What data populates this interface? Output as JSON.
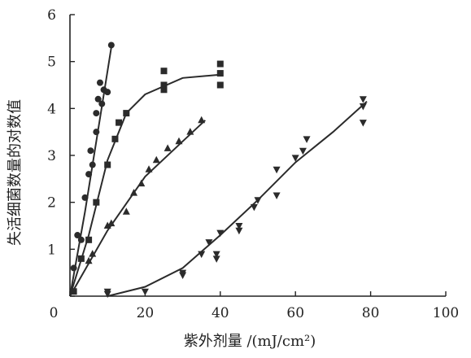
{
  "chart_data": {
    "type": "scatter",
    "title": "",
    "xlabel": "紫外剂量 /(mJ/cm²)",
    "ylabel": "失活细菌数量的对数值",
    "xlim": [
      0,
      100
    ],
    "ylim": [
      0,
      6
    ],
    "xticks": [
      "0",
      "20",
      "40",
      "60",
      "80",
      "100"
    ],
    "yticks": [
      "0",
      "1",
      "2",
      "3",
      "4",
      "5",
      "6"
    ],
    "grid": false,
    "legend": "none",
    "marker_color": "#2b2b2b",
    "series": [
      {
        "marker": "circle",
        "points": [
          [
            1,
            0.6
          ],
          [
            2,
            1.3
          ],
          [
            3,
            1.2
          ],
          [
            4,
            2.1
          ],
          [
            5,
            2.6
          ],
          [
            5.5,
            3.1
          ],
          [
            6,
            2.8
          ],
          [
            7,
            3.5
          ],
          [
            7,
            3.9
          ],
          [
            7.5,
            4.2
          ],
          [
            8,
            4.55
          ],
          [
            8.5,
            4.1
          ],
          [
            9,
            4.4
          ],
          [
            10,
            4.35
          ],
          [
            11,
            5.35
          ]
        ],
        "fit": [
          [
            0,
            0
          ],
          [
            4,
            1.8
          ],
          [
            8,
            3.8
          ],
          [
            11,
            5.3
          ]
        ]
      },
      {
        "marker": "square",
        "points": [
          [
            1,
            0.1
          ],
          [
            3,
            0.8
          ],
          [
            5,
            1.2
          ],
          [
            7,
            2.0
          ],
          [
            10,
            2.8
          ],
          [
            12,
            3.35
          ],
          [
            13,
            3.7
          ],
          [
            15,
            3.9
          ],
          [
            25,
            4.4
          ],
          [
            25,
            4.5
          ],
          [
            25,
            4.8
          ],
          [
            40,
            4.5
          ],
          [
            40,
            4.75
          ],
          [
            40,
            4.95
          ]
        ],
        "fit": [
          [
            0,
            0
          ],
          [
            5,
            1.3
          ],
          [
            10,
            2.9
          ],
          [
            15,
            3.9
          ],
          [
            20,
            4.3
          ],
          [
            30,
            4.65
          ],
          [
            40,
            4.72
          ]
        ]
      },
      {
        "marker": "triangle-up",
        "points": [
          [
            5,
            0.75
          ],
          [
            6,
            0.9
          ],
          [
            10,
            1.5
          ],
          [
            11,
            1.55
          ],
          [
            15,
            1.8
          ],
          [
            17,
            2.2
          ],
          [
            19,
            2.4
          ],
          [
            21,
            2.7
          ],
          [
            23,
            2.9
          ],
          [
            26,
            3.15
          ],
          [
            29,
            3.3
          ],
          [
            32,
            3.5
          ],
          [
            35,
            3.75
          ]
        ],
        "fit": [
          [
            0,
            0
          ],
          [
            10,
            1.4
          ],
          [
            20,
            2.55
          ],
          [
            30,
            3.3
          ],
          [
            36,
            3.75
          ]
        ]
      },
      {
        "marker": "triangle-down",
        "points": [
          [
            10,
            0.05
          ],
          [
            10,
            0.1
          ],
          [
            20,
            0.1
          ],
          [
            30,
            0.45
          ],
          [
            30,
            0.5
          ],
          [
            35,
            0.9
          ],
          [
            37,
            1.15
          ],
          [
            39,
            0.8
          ],
          [
            39,
            0.9
          ],
          [
            40,
            1.35
          ],
          [
            45,
            1.4
          ],
          [
            45,
            1.5
          ],
          [
            49,
            1.9
          ],
          [
            50,
            2.05
          ],
          [
            55,
            2.15
          ],
          [
            55,
            2.7
          ],
          [
            60,
            2.95
          ],
          [
            62,
            3.1
          ],
          [
            63,
            3.35
          ],
          [
            78,
            3.7
          ],
          [
            78,
            4.05
          ],
          [
            78,
            4.2
          ]
        ],
        "fit": [
          [
            10,
            0
          ],
          [
            20,
            0.2
          ],
          [
            30,
            0.6
          ],
          [
            40,
            1.3
          ],
          [
            50,
            2.05
          ],
          [
            60,
            2.85
          ],
          [
            70,
            3.5
          ],
          [
            79,
            4.15
          ]
        ]
      }
    ]
  }
}
